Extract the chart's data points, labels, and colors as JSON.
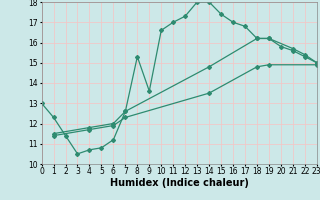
{
  "background_color": "#cce8e8",
  "grid_color": "#f0c8c8",
  "line_color": "#2e8b70",
  "series1_x": [
    0,
    1,
    2,
    3,
    4,
    5,
    6,
    7,
    8,
    9,
    10,
    11,
    12,
    13,
    14,
    15,
    16,
    17,
    18,
    19,
    20,
    21,
    22,
    23
  ],
  "series1_y": [
    13.0,
    12.3,
    11.4,
    10.5,
    10.7,
    10.8,
    11.2,
    12.6,
    15.3,
    13.6,
    16.6,
    17.0,
    17.3,
    18.0,
    18.0,
    17.4,
    17.0,
    16.8,
    16.2,
    16.2,
    15.8,
    15.6,
    15.3,
    15.0
  ],
  "series2_x": [
    1,
    4,
    6,
    7,
    14,
    18,
    19,
    21,
    22,
    23
  ],
  "series2_y": [
    11.5,
    11.8,
    12.0,
    12.6,
    14.8,
    16.2,
    16.2,
    15.7,
    15.4,
    15.0
  ],
  "series3_x": [
    1,
    4,
    6,
    7,
    14,
    18,
    19,
    23
  ],
  "series3_y": [
    11.4,
    11.7,
    11.9,
    12.3,
    13.5,
    14.8,
    14.9,
    14.9
  ],
  "xlim": [
    0,
    23
  ],
  "ylim": [
    10,
    18
  ],
  "yticks": [
    10,
    11,
    12,
    13,
    14,
    15,
    16,
    17,
    18
  ],
  "xticks": [
    0,
    1,
    2,
    3,
    4,
    5,
    6,
    7,
    8,
    9,
    10,
    11,
    12,
    13,
    14,
    15,
    16,
    17,
    18,
    19,
    20,
    21,
    22,
    23
  ],
  "xlabel": "Humidex (Indice chaleur)",
  "xlabel_fontsize": 7,
  "tick_fontsize": 5.5,
  "marker": "D",
  "marker_size": 2.0,
  "linewidth": 0.9
}
